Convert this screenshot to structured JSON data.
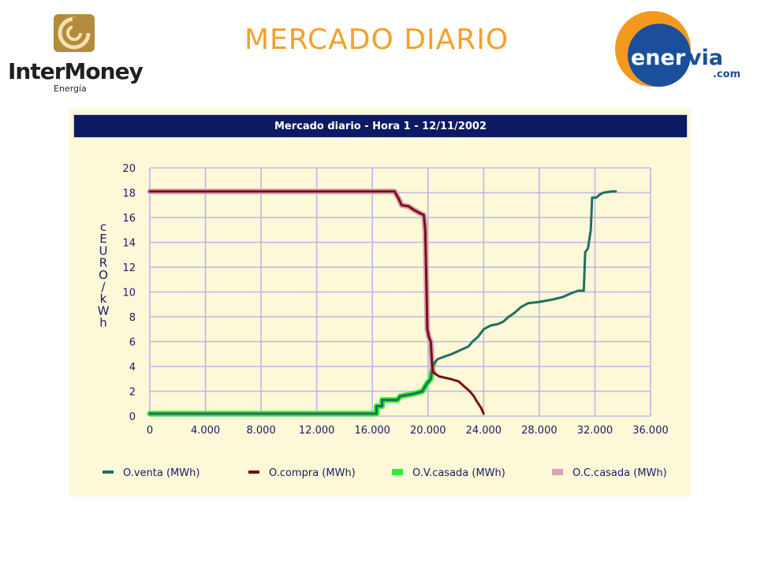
{
  "page": {
    "title": "MERCADO DIARIO"
  },
  "logos": {
    "left": {
      "name": "InterMoney",
      "sub": "Energía"
    },
    "right": {
      "name_part1": "ener",
      "name_part2": "via",
      "domain": ".com"
    }
  },
  "colors": {
    "title": "#f5a02a",
    "panel_bg": "#fcf8d8",
    "header_bg": "#0c1a63",
    "grid": "#b9b9e6",
    "venta": "#1f7060",
    "compra": "#7a1010",
    "v_casada": "#2ef02e",
    "c_casada": "#d9a0b8"
  },
  "chart_data": {
    "type": "line",
    "title": "Mercado diario - Hora 1 - 12/11/2002",
    "ylabel": "cEURO/kWh",
    "xlabel": "",
    "xlim": [
      0,
      36000
    ],
    "ylim": [
      0,
      20
    ],
    "grid": true,
    "legend_position": "bottom",
    "x_ticks": [
      "0",
      "4.000",
      "8.000",
      "12.000",
      "16.000",
      "20.000",
      "24.000",
      "28.000",
      "32.000",
      "36.000"
    ],
    "y_ticks": [
      "0",
      "2",
      "4",
      "6",
      "8",
      "10",
      "12",
      "14",
      "16",
      "18",
      "20"
    ],
    "series": [
      {
        "name": "O.venta (MWh)",
        "color_key": "venta",
        "points": [
          [
            0,
            0.2
          ],
          [
            16300,
            0.2
          ],
          [
            16300,
            0.8
          ],
          [
            16700,
            0.8
          ],
          [
            16700,
            1.3
          ],
          [
            17800,
            1.3
          ],
          [
            18000,
            1.6
          ],
          [
            19000,
            1.8
          ],
          [
            19600,
            2.0
          ],
          [
            19900,
            2.6
          ],
          [
            20200,
            3.0
          ],
          [
            20300,
            3.8
          ],
          [
            20400,
            4.2
          ],
          [
            20700,
            4.6
          ],
          [
            21200,
            4.8
          ],
          [
            21700,
            5.0
          ],
          [
            22100,
            5.2
          ],
          [
            22500,
            5.4
          ],
          [
            22900,
            5.6
          ],
          [
            23200,
            6.0
          ],
          [
            23600,
            6.4
          ],
          [
            24000,
            7.0
          ],
          [
            24500,
            7.3
          ],
          [
            25000,
            7.4
          ],
          [
            25400,
            7.6
          ],
          [
            25800,
            8.0
          ],
          [
            26200,
            8.3
          ],
          [
            26700,
            8.8
          ],
          [
            27200,
            9.1
          ],
          [
            28000,
            9.2
          ],
          [
            29000,
            9.4
          ],
          [
            29700,
            9.6
          ],
          [
            30300,
            9.9
          ],
          [
            30800,
            10.1
          ],
          [
            31200,
            10.1
          ],
          [
            31300,
            13.2
          ],
          [
            31500,
            13.5
          ],
          [
            31700,
            15.0
          ],
          [
            31800,
            17.6
          ],
          [
            32100,
            17.6
          ],
          [
            32300,
            17.8
          ],
          [
            32600,
            18.0
          ],
          [
            33200,
            18.1
          ],
          [
            33500,
            18.1
          ]
        ]
      },
      {
        "name": "O.compra (MWh)",
        "color_key": "compra",
        "points": [
          [
            0,
            18.1
          ],
          [
            17600,
            18.1
          ],
          [
            17900,
            17.5
          ],
          [
            18100,
            17.0
          ],
          [
            18600,
            16.9
          ],
          [
            19000,
            16.6
          ],
          [
            19500,
            16.3
          ],
          [
            19700,
            16.2
          ],
          [
            19800,
            15.0
          ],
          [
            19900,
            10.0
          ],
          [
            19950,
            7.0
          ],
          [
            20050,
            6.4
          ],
          [
            20200,
            6.0
          ],
          [
            20300,
            4.0
          ],
          [
            20400,
            3.5
          ],
          [
            20800,
            3.2
          ],
          [
            21600,
            3.0
          ],
          [
            22200,
            2.8
          ],
          [
            22600,
            2.4
          ],
          [
            23000,
            2.0
          ],
          [
            23300,
            1.6
          ],
          [
            23500,
            1.2
          ],
          [
            23800,
            0.7
          ],
          [
            24000,
            0.2
          ]
        ]
      },
      {
        "name": "O.V.casada (MWh)",
        "color_key": "v_casada",
        "points": [
          [
            0,
            0.2
          ],
          [
            16300,
            0.2
          ],
          [
            16300,
            0.8
          ],
          [
            16700,
            0.8
          ],
          [
            16700,
            1.3
          ],
          [
            17800,
            1.3
          ],
          [
            18000,
            1.6
          ],
          [
            19000,
            1.8
          ],
          [
            19600,
            2.0
          ],
          [
            19900,
            2.6
          ],
          [
            20200,
            3.0
          ],
          [
            20300,
            3.8
          ],
          [
            20400,
            4.2
          ]
        ]
      },
      {
        "name": "O.C.casada (MWh)",
        "color_key": "c_casada",
        "points": [
          [
            0,
            18.1
          ],
          [
            17600,
            18.1
          ],
          [
            17900,
            17.5
          ],
          [
            18100,
            17.0
          ],
          [
            18600,
            16.9
          ],
          [
            19000,
            16.6
          ],
          [
            19500,
            16.3
          ],
          [
            19700,
            16.2
          ],
          [
            19800,
            15.0
          ],
          [
            19900,
            10.0
          ],
          [
            19950,
            7.0
          ],
          [
            20050,
            6.4
          ],
          [
            20200,
            6.0
          ],
          [
            20300,
            4.0
          ],
          [
            20400,
            3.5
          ]
        ]
      }
    ]
  }
}
